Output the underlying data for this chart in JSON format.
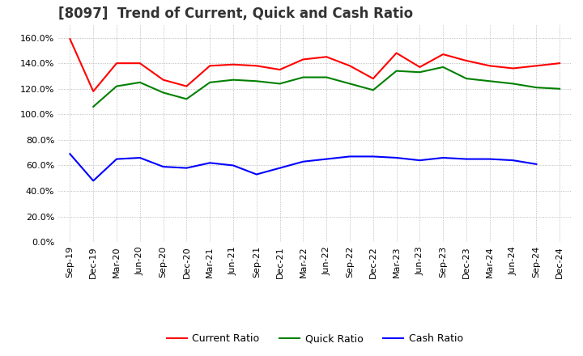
{
  "title": "[8097]  Trend of Current, Quick and Cash Ratio",
  "x_labels": [
    "Sep-19",
    "Dec-19",
    "Mar-20",
    "Jun-20",
    "Sep-20",
    "Dec-20",
    "Mar-21",
    "Jun-21",
    "Sep-21",
    "Dec-21",
    "Mar-22",
    "Jun-22",
    "Sep-22",
    "Dec-22",
    "Mar-23",
    "Jun-23",
    "Sep-23",
    "Dec-23",
    "Mar-24",
    "Jun-24",
    "Sep-24",
    "Dec-24"
  ],
  "current_ratio": [
    1.59,
    1.18,
    1.4,
    1.4,
    1.27,
    1.22,
    1.38,
    1.39,
    1.38,
    1.35,
    1.43,
    1.45,
    1.38,
    1.28,
    1.48,
    1.37,
    1.47,
    1.42,
    1.38,
    1.36,
    1.38,
    1.4
  ],
  "quick_ratio": [
    null,
    1.06,
    1.22,
    1.25,
    1.17,
    1.12,
    1.25,
    1.27,
    1.26,
    1.24,
    1.29,
    1.29,
    1.24,
    1.19,
    1.34,
    1.33,
    1.37,
    1.28,
    1.26,
    1.24,
    1.21,
    1.2
  ],
  "cash_ratio": [
    0.69,
    0.48,
    0.65,
    0.66,
    0.59,
    0.58,
    0.62,
    0.6,
    0.53,
    0.58,
    0.63,
    0.65,
    0.67,
    0.67,
    0.66,
    0.64,
    0.66,
    0.65,
    0.65,
    0.64,
    0.61,
    null
  ],
  "ylim": [
    0.0,
    1.7
  ],
  "yticks": [
    0.0,
    0.2,
    0.4,
    0.6,
    0.8,
    1.0,
    1.2,
    1.4,
    1.6
  ],
  "current_color": "#FF0000",
  "quick_color": "#008000",
  "cash_color": "#0000FF",
  "bg_color": "#FFFFFF",
  "grid_color": "#AAAAAA",
  "title_fontsize": 12,
  "tick_fontsize": 8,
  "legend_fontsize": 9
}
